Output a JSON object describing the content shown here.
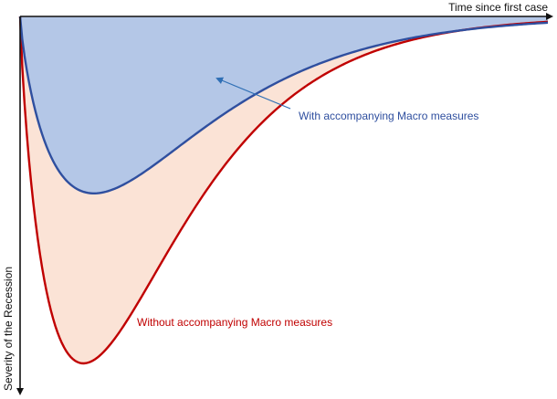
{
  "chart_data": {
    "type": "area",
    "xlabel": "Time since first case",
    "ylabel": "Severity of the Recession",
    "y_direction": "down",
    "grid": false,
    "series": [
      {
        "name": "Without accompanying Macro measures",
        "peak_x": 0.12,
        "peak_depth": 1.0,
        "line_color": "#c00000",
        "fill_color": "#fbe3d6"
      },
      {
        "name": "With accompanying Macro measures",
        "peak_x": 0.14,
        "peak_depth": 0.51,
        "line_color": "#2f4f9f",
        "fill_color": "#b4c7e7"
      }
    ],
    "annotations": [
      {
        "text": "With accompanying Macro measures",
        "series": "With accompanying Macro measures"
      },
      {
        "text": "Without accompanying Macro measures",
        "series": "Without accompanying Macro measures"
      }
    ]
  }
}
